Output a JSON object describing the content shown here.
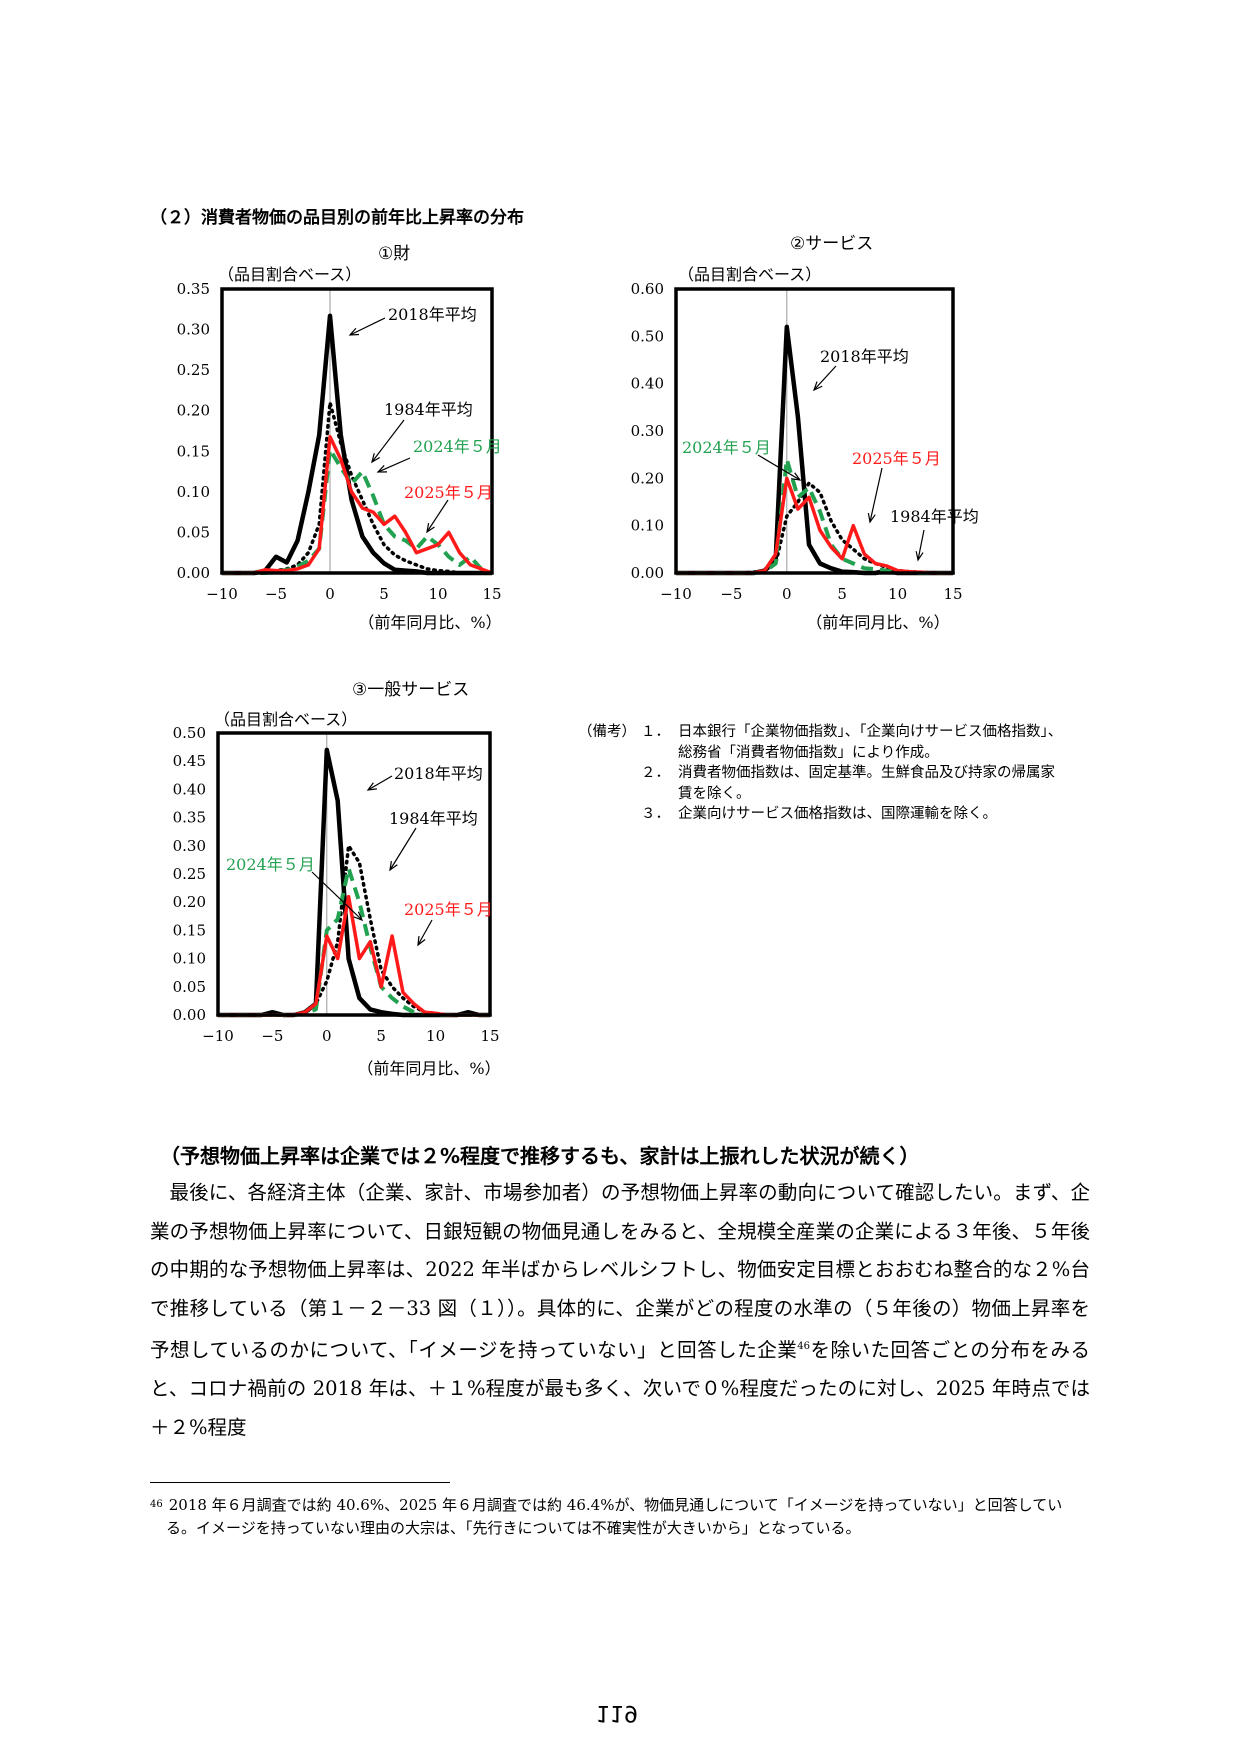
{
  "section_title": "（２）消費者物価の品目別の前年比上昇率の分布",
  "colors": {
    "series_2018": "#000000",
    "series_1984": "#000000",
    "series_2024_05": "#22a150",
    "series_2025_05": "#ff1a1a"
  },
  "chart_data": [
    {
      "type": "line",
      "title": "①財",
      "ylabel": "（品目割合ベース）",
      "xlabel": "（前年同月比、%）",
      "xlim": [
        -10,
        15
      ],
      "ylim": [
        0,
        0.35
      ],
      "yticks": [
        "0.35",
        "0.30",
        "0.25",
        "0.20",
        "0.15",
        "0.10",
        "0.05",
        "0.00"
      ],
      "ytick_values": [
        0.35,
        0.3,
        0.25,
        0.2,
        0.15,
        0.1,
        0.05,
        0.0
      ],
      "xticks": [
        "−10",
        "−5",
        "0",
        "5",
        "10",
        "15"
      ],
      "xtick_values": [
        -10,
        -5,
        0,
        5,
        10,
        15
      ],
      "x": [
        -10,
        -9,
        -8,
        -7,
        -6,
        -5,
        -4,
        -3,
        -2,
        -1,
        0,
        1,
        2,
        3,
        4,
        5,
        6,
        7,
        8,
        9,
        10,
        11,
        12,
        13,
        14,
        15
      ],
      "series": [
        {
          "name": "2018年平均",
          "style": "solid-black",
          "values": [
            0,
            0,
            0,
            0,
            0.003,
            0.02,
            0.013,
            0.04,
            0.1,
            0.17,
            0.317,
            0.17,
            0.09,
            0.045,
            0.025,
            0.012,
            0.004,
            0.003,
            0.002,
            0,
            0,
            0,
            0,
            0,
            0,
            0
          ]
        },
        {
          "name": "1984年平均",
          "style": "dotted-black",
          "values": [
            0,
            0,
            0,
            0,
            0,
            0.003,
            0.005,
            0.01,
            0.025,
            0.06,
            0.21,
            0.16,
            0.12,
            0.09,
            0.06,
            0.035,
            0.022,
            0.015,
            0.01,
            0.005,
            0.003,
            0.002,
            0,
            0,
            0,
            0
          ]
        },
        {
          "name": "2024年５月",
          "style": "dashed-green",
          "values": [
            0,
            0,
            0,
            0,
            0,
            0.002,
            0.004,
            0.008,
            0.015,
            0.03,
            0.152,
            0.13,
            0.11,
            0.125,
            0.095,
            0.06,
            0.045,
            0.04,
            0.03,
            0.045,
            0.035,
            0.02,
            0.01,
            0.02,
            0.005,
            0
          ]
        },
        {
          "name": "2025年５月",
          "style": "solid-red",
          "values": [
            0,
            0,
            0,
            0,
            0.004,
            0.003,
            0.003,
            0.005,
            0.01,
            0.03,
            0.168,
            0.14,
            0.1,
            0.08,
            0.075,
            0.06,
            0.07,
            0.05,
            0.025,
            0.03,
            0.035,
            0.05,
            0.025,
            0.01,
            0.005,
            0
          ]
        }
      ],
      "annotations": [
        "2018年平均",
        "1984年平均",
        "2024年５月",
        "2025年５月"
      ]
    },
    {
      "type": "line",
      "title": "②サービス",
      "ylabel": "（品目割合ベース）",
      "xlabel": "（前年同月比、%）",
      "xlim": [
        -10,
        15
      ],
      "ylim": [
        0,
        0.6
      ],
      "yticks": [
        "0.60",
        "0.50",
        "0.40",
        "0.30",
        "0.20",
        "0.10",
        "0.00"
      ],
      "ytick_values": [
        0.6,
        0.5,
        0.4,
        0.3,
        0.2,
        0.1,
        0.0
      ],
      "xticks": [
        "−10",
        "−5",
        "0",
        "5",
        "10",
        "15"
      ],
      "xtick_values": [
        -10,
        -5,
        0,
        5,
        10,
        15
      ],
      "x": [
        -10,
        -9,
        -8,
        -7,
        -6,
        -5,
        -4,
        -3,
        -2,
        -1,
        0,
        1,
        2,
        3,
        4,
        5,
        6,
        7,
        8,
        9,
        10,
        11,
        12,
        13,
        14,
        15
      ],
      "series": [
        {
          "name": "2018年平均",
          "style": "solid-black",
          "values": [
            0,
            0,
            0,
            0,
            0,
            0,
            0,
            0,
            0.005,
            0.03,
            0.52,
            0.33,
            0.06,
            0.02,
            0.01,
            0.003,
            0.002,
            0,
            0,
            0.005,
            0,
            0,
            0,
            0,
            0,
            0
          ]
        },
        {
          "name": "1984年平均",
          "style": "dotted-black",
          "values": [
            0,
            0,
            0,
            0,
            0,
            0,
            0,
            0.002,
            0.005,
            0.02,
            0.12,
            0.15,
            0.19,
            0.17,
            0.11,
            0.07,
            0.05,
            0.03,
            0.02,
            0.012,
            0.005,
            0.003,
            0.002,
            0,
            0,
            0
          ]
        },
        {
          "name": "2024年５月",
          "style": "dashed-green",
          "values": [
            0,
            0,
            0,
            0,
            0,
            0,
            0,
            0,
            0.003,
            0.02,
            0.24,
            0.16,
            0.18,
            0.13,
            0.06,
            0.03,
            0.02,
            0.01,
            0.008,
            0.005,
            0.003,
            0.002,
            0,
            0,
            0,
            0
          ]
        },
        {
          "name": "2025年５月",
          "style": "solid-red",
          "values": [
            0,
            0,
            0,
            0,
            0,
            0,
            0,
            0,
            0.005,
            0.04,
            0.2,
            0.135,
            0.16,
            0.09,
            0.055,
            0.03,
            0.1,
            0.04,
            0.02,
            0.015,
            0.005,
            0.003,
            0.002,
            0,
            0,
            0
          ]
        }
      ],
      "annotations": [
        "2018年平均",
        "2024年５月",
        "2025年５月",
        "1984年平均"
      ]
    },
    {
      "type": "line",
      "title": "③一般サービス",
      "ylabel": "（品目割合ベース）",
      "xlabel": "（前年同月比、%）",
      "xlim": [
        -10,
        15
      ],
      "ylim": [
        0,
        0.5
      ],
      "yticks": [
        "0.50",
        "0.45",
        "0.40",
        "0.35",
        "0.30",
        "0.25",
        "0.20",
        "0.15",
        "0.10",
        "0.05",
        "0.00"
      ],
      "ytick_values": [
        0.5,
        0.45,
        0.4,
        0.35,
        0.3,
        0.25,
        0.2,
        0.15,
        0.1,
        0.05,
        0.0
      ],
      "xticks": [
        "−10",
        "−5",
        "0",
        "5",
        "10",
        "15"
      ],
      "xtick_values": [
        -10,
        -5,
        0,
        5,
        10,
        15
      ],
      "x": [
        -10,
        -9,
        -8,
        -7,
        -6,
        -5,
        -4,
        -3,
        -2,
        -1,
        0,
        1,
        2,
        3,
        4,
        5,
        6,
        7,
        8,
        9,
        10,
        11,
        12,
        13,
        14,
        15
      ],
      "series": [
        {
          "name": "2018年平均",
          "style": "solid-black",
          "values": [
            0,
            0,
            0,
            0,
            0,
            0.005,
            0,
            0,
            0.005,
            0.02,
            0.47,
            0.38,
            0.1,
            0.03,
            0.01,
            0.005,
            0.002,
            0,
            0,
            0,
            0,
            0,
            0,
            0.005,
            0,
            0
          ]
        },
        {
          "name": "1984年平均",
          "style": "dotted-black",
          "values": [
            0,
            0,
            0,
            0,
            0,
            0,
            0,
            0,
            0.003,
            0.02,
            0.06,
            0.13,
            0.3,
            0.27,
            0.17,
            0.08,
            0.05,
            0.03,
            0.015,
            0.005,
            0.003,
            0,
            0,
            0,
            0,
            0
          ]
        },
        {
          "name": "2024年５月",
          "style": "dashed-green",
          "values": [
            0,
            0,
            0,
            0,
            0,
            0,
            0,
            0,
            0.003,
            0.01,
            0.15,
            0.17,
            0.26,
            0.2,
            0.12,
            0.05,
            0.03,
            0.015,
            0.005,
            0.003,
            0,
            0,
            0,
            0,
            0,
            0
          ]
        },
        {
          "name": "2025年５月",
          "style": "solid-red",
          "values": [
            0,
            0,
            0,
            0,
            0,
            0,
            0,
            0,
            0.005,
            0.02,
            0.14,
            0.1,
            0.21,
            0.1,
            0.13,
            0.05,
            0.14,
            0.04,
            0.02,
            0.005,
            0.003,
            0,
            0,
            0,
            0,
            0
          ]
        }
      ],
      "annotations": [
        "2018年平均",
        "1984年平均",
        "2024年５月",
        "2025年５月"
      ]
    }
  ],
  "notes": {
    "label": "（備考）",
    "items": [
      {
        "num": "１．",
        "text": "日本銀行「企業物価指数」、「企業向けサービス価格指数」、総務省「消費者物価指数」により作成。"
      },
      {
        "num": "２．",
        "text": "消費者物価指数は、固定基準。生鮮食品及び持家の帰属家賃を除く。"
      },
      {
        "num": "３．",
        "text": "企業向けサービス価格指数は、国際運輸を除く。"
      }
    ]
  },
  "heading": "（予想物価上昇率は企業では２%程度で推移するも、家計は上振れした状況が続く）",
  "body": {
    "para_before": "最後に、各経済主体（企業、家計、市場参加者）の予想物価上昇率の動向について確認したい。まず、企業の予想物価上昇率について、日銀短観の物価見通しをみると、全規模全産業の企業による３年後、５年後の中期的な予想物価上昇率は、2022 年半ばからレベルシフトし、物価安定目標とおおむね整合的な２%台で推移している（第１－２－33 図（１））。具体的に、企業がどの程度の水準の（５年後の）物価上昇率を予想しているのかについて、「イメージを持っていない」と回答した企業",
    "footnote_ref": "46",
    "para_after": "を除いた回答ごとの分布をみると、コロナ禍前の 2018 年は、＋１%程度が最も多く、次いで０%程度だったのに対し、2025 年時点では＋２%程度"
  },
  "footnote": {
    "num": "46",
    "text": "2018 年６月調査では約 40.6%、2025 年６月調査では約 46.4%が、物価見通しについて「イメージを持っていない」と回答している。イメージを持っていない理由の大宗は、「先行きについては不確実性が大きいから」となっている。"
  },
  "page_number": "119"
}
